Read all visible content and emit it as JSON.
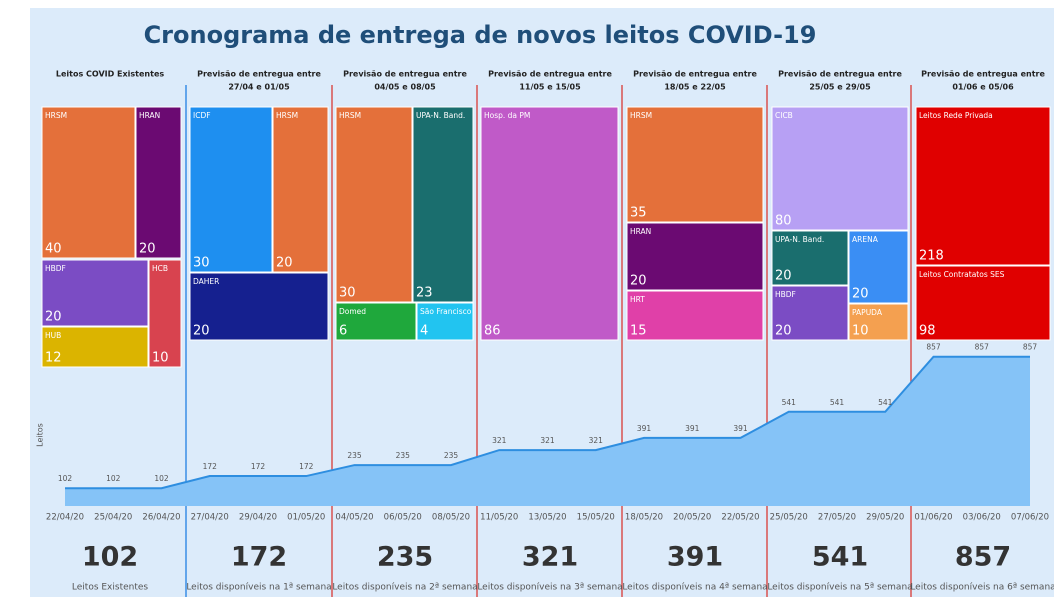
{
  "title": "Cronograma de entrega de novos leitos COVID-19",
  "columns": [
    {
      "header": "Leitos COVID Existentes",
      "dates": null,
      "total": 102,
      "total_label": "Leitos Existentes",
      "cells": [
        {
          "label": "HRSM",
          "value": 40,
          "color": "#e4703a"
        },
        {
          "label": "HRAN",
          "value": 20,
          "color": "#6b0a72"
        },
        {
          "label": "HBDF",
          "value": 20,
          "color": "#7b4cc4"
        },
        {
          "label": "HUB",
          "value": 12,
          "color": "#dbb400"
        },
        {
          "label": "HCB",
          "value": 10,
          "color": "#d8434f"
        }
      ]
    },
    {
      "header": "Previsão de entregua entre",
      "dates": "27/04 e 01/05",
      "total": 172,
      "total_label": "Leitos disponíveis na 1ª semana",
      "cells": [
        {
          "label": "ICDF",
          "value": 30,
          "color": "#1e8ff0"
        },
        {
          "label": "HRSM",
          "value": 20,
          "color": "#e4703a"
        },
        {
          "label": "DAHER",
          "value": 20,
          "color": "#15208f"
        }
      ]
    },
    {
      "header": "Previsão de entregua entre",
      "dates": "04/05 e 08/05",
      "total": 235,
      "total_label": "Leitos disponíveis na 2ª semana",
      "cells": [
        {
          "label": "HRSM",
          "value": 30,
          "color": "#e4703a"
        },
        {
          "label": "UPA-N. Band.",
          "value": 23,
          "color": "#1a6e6e"
        },
        {
          "label": "Domed",
          "value": 6,
          "color": "#1fa83c"
        },
        {
          "label": "São Francisco",
          "value": 4,
          "color": "#22c4f0"
        }
      ]
    },
    {
      "header": "Previsão de entregua entre",
      "dates": "11/05 e 15/05",
      "total": 321,
      "total_label": "Leitos disponíveis na 3ª semana",
      "cells": [
        {
          "label": "Hosp. da PM",
          "value": 86,
          "color": "#c05ac8"
        }
      ]
    },
    {
      "header": "Previsão de entregua entre",
      "dates": "18/05 e 22/05",
      "total": 391,
      "total_label": "Leitos disponíveis na 4ª semana",
      "cells": [
        {
          "label": "HRSM",
          "value": 35,
          "color": "#e4703a"
        },
        {
          "label": "HRAN",
          "value": 20,
          "color": "#6b0a72"
        },
        {
          "label": "HRT",
          "value": 15,
          "color": "#e040a8"
        }
      ]
    },
    {
      "header": "Previsão de entregua entre",
      "dates": "25/05 e 29/05",
      "total": 541,
      "total_label": "Leitos disponíveis na 5ª semana",
      "cells": [
        {
          "label": "CICB",
          "value": 80,
          "color": "#b7a0f4"
        },
        {
          "label": "UPA-N. Band.",
          "value": 20,
          "color": "#1a6e6e"
        },
        {
          "label": "ARENA",
          "value": 20,
          "color": "#3a8ef4"
        },
        {
          "label": "HBDF",
          "value": 20,
          "color": "#7b4cc4"
        },
        {
          "label": "PAPUDA",
          "value": 10,
          "color": "#f4a050"
        }
      ]
    },
    {
      "header": "Previsão de entregua entre",
      "dates": "01/06 e 05/06",
      "total": 857,
      "total_label": "Leitos disponíveis na 6ª semana",
      "cells": [
        {
          "label": "Leitos Rede Privada",
          "value": 218,
          "color": "#e00000"
        },
        {
          "label": "Leitos Contratatos SES",
          "value": 98,
          "color": "#e00000"
        }
      ]
    }
  ],
  "chart_data": {
    "type": "area",
    "y_label": "Leitos",
    "categories": [
      "22/04/20",
      "25/04/20",
      "26/04/20",
      "27/04/20",
      "29/04/20",
      "01/05/20",
      "04/05/20",
      "06/05/20",
      "08/05/20",
      "11/05/20",
      "13/05/20",
      "15/05/20",
      "18/05/20",
      "20/05/20",
      "22/05/20",
      "25/05/20",
      "27/05/20",
      "29/05/20",
      "01/06/20",
      "03/06/20",
      "07/06/20"
    ],
    "values": [
      102,
      102,
      102,
      172,
      172,
      172,
      235,
      235,
      235,
      321,
      321,
      321,
      391,
      391,
      391,
      541,
      541,
      541,
      857,
      857,
      857
    ],
    "ylim": [
      0,
      930
    ],
    "color": "#2e8ee0",
    "fill": "#85c3f7"
  }
}
